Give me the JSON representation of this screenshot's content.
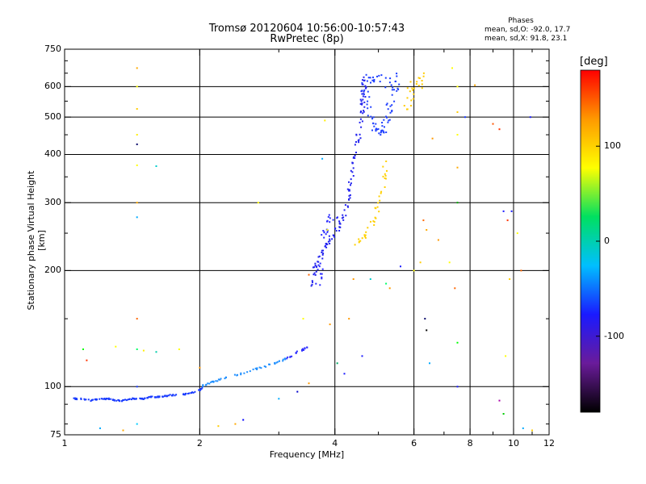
{
  "chart_data": {
    "type": "scatter",
    "title": "Tromsø 20120604 10:56:00-10:57:43",
    "subtitle": "RwPretec (8p)",
    "xlabel": "Frequency [MHz]",
    "ylabel": "Stationary phase Virtual Height [km]",
    "x_scale": "log",
    "y_scale": "log",
    "xlim": [
      1,
      12
    ],
    "ylim": [
      75,
      750
    ],
    "x_ticks": [
      1,
      2,
      4,
      6,
      8,
      10,
      12
    ],
    "y_ticks": [
      75,
      100,
      200,
      300,
      400,
      500,
      600,
      750
    ],
    "x_gridlines": [
      2,
      4,
      6,
      8,
      10
    ],
    "y_gridlines": [
      100,
      200,
      300,
      400,
      500,
      600
    ],
    "grid": true,
    "phase_stats": {
      "header": "Phases",
      "line_o": "mean, sd,O:  -92.0, 17.7",
      "line_x": "mean, sd,X:  91.8, 23.1"
    },
    "colorbar": {
      "label": "[deg]",
      "ticks": [
        -100,
        0,
        100
      ],
      "tick_labels": [
        "-100",
        "0",
        "100"
      ],
      "range": [
        -180,
        180
      ],
      "colors": [
        "#000000",
        "#6a1b9a",
        "#1a1aff",
        "#00bfff",
        "#00e060",
        "#ffff00",
        "#ff9900",
        "#ff0000"
      ]
    },
    "series": [
      {
        "traces": [
          {
            "color": "#1a3cff",
            "points": [
              [
                1.05,
                93
              ],
              [
                1.1,
                93
              ],
              [
                1.15,
                92
              ],
              [
                1.2,
                93
              ],
              [
                1.25,
                93
              ],
              [
                1.3,
                92
              ],
              [
                1.35,
                92
              ],
              [
                1.4,
                93
              ],
              [
                1.45,
                93
              ],
              [
                1.5,
                93
              ],
              [
                1.55,
                94
              ],
              [
                1.6,
                94
              ],
              [
                1.65,
                94
              ],
              [
                1.7,
                95
              ],
              [
                1.8,
                95
              ],
              [
                1.9,
                96
              ],
              [
                2.0,
                98
              ],
              [
                2.05,
                100
              ]
            ],
            "jitter": 1.5,
            "per_segment": 8
          },
          {
            "color": "#1f8fff",
            "points": [
              [
                2.0,
                100
              ],
              [
                2.1,
                102
              ],
              [
                2.2,
                104
              ],
              [
                2.4,
                107
              ],
              [
                2.6,
                110
              ],
              [
                2.8,
                113
              ],
              [
                3.0,
                116
              ],
              [
                3.1,
                118
              ]
            ],
            "jitter": 2,
            "per_segment": 7
          },
          {
            "color": "#3030ff",
            "points": [
              [
                3.1,
                118
              ],
              [
                3.2,
                120
              ],
              [
                3.3,
                123
              ],
              [
                3.4,
                125
              ],
              [
                3.5,
                127
              ]
            ],
            "jitter": 2,
            "per_segment": 5
          },
          {
            "color": "#2222ee",
            "points": [
              [
                3.55,
                185
              ],
              [
                3.6,
                200
              ],
              [
                3.7,
                215
              ],
              [
                3.8,
                230
              ],
              [
                3.9,
                240
              ],
              [
                4.0,
                250
              ],
              [
                4.1,
                262
              ],
              [
                4.2,
                280
              ],
              [
                4.3,
                310
              ],
              [
                4.35,
                340
              ],
              [
                4.4,
                380
              ],
              [
                4.5,
                430
              ],
              [
                4.55,
                480
              ],
              [
                4.6,
                530
              ],
              [
                4.62,
                560
              ],
              [
                4.65,
                600
              ],
              [
                4.67,
                640
              ]
            ],
            "jitter": 6,
            "per_segment": 8
          },
          {
            "color": "#2a2aff",
            "points": [
              [
                3.65,
                175
              ],
              [
                3.7,
                200
              ],
              [
                3.75,
                230
              ],
              [
                3.8,
                255
              ],
              [
                3.9,
                270
              ],
              [
                4.0,
                280
              ]
            ],
            "jitter": 8,
            "per_segment": 6
          },
          {
            "color": "#2040ff",
            "points": [
              [
                4.65,
                630
              ],
              [
                4.7,
                560
              ],
              [
                4.8,
                500
              ],
              [
                4.9,
                470
              ],
              [
                5.0,
                455
              ],
              [
                5.1,
                465
              ],
              [
                5.2,
                490
              ],
              [
                5.3,
                530
              ],
              [
                5.4,
                580
              ],
              [
                5.5,
                630
              ]
            ],
            "jitter": 10,
            "per_segment": 7
          },
          {
            "color": "#1a3cff",
            "points": [
              [
                4.7,
                640
              ],
              [
                4.9,
                620
              ],
              [
                5.1,
                640
              ],
              [
                5.3,
                610
              ],
              [
                5.5,
                640
              ]
            ],
            "jitter": 12,
            "per_segment": 5
          },
          {
            "color": "#ffd000",
            "points": [
              [
                4.4,
                225
              ],
              [
                4.6,
                240
              ],
              [
                4.8,
                258
              ],
              [
                4.95,
                280
              ],
              [
                5.05,
                310
              ],
              [
                5.15,
                350
              ],
              [
                5.2,
                390
              ]
            ],
            "jitter": 6,
            "per_segment": 6
          },
          {
            "color": "#ffcc00",
            "points": [
              [
                5.7,
                530
              ],
              [
                5.85,
                560
              ],
              [
                6.0,
                590
              ],
              [
                6.1,
                620
              ],
              [
                6.2,
                640
              ]
            ],
            "jitter": 15,
            "per_segment": 6
          }
        ],
        "scatter": [
          [
            1.45,
            670,
            "#ffaa00"
          ],
          [
            1.45,
            600,
            "#ffff00"
          ],
          [
            1.45,
            525,
            "#ffcc00"
          ],
          [
            1.45,
            450,
            "#ffee00"
          ],
          [
            1.45,
            425,
            "#000066"
          ],
          [
            1.45,
            375,
            "#ffff00"
          ],
          [
            1.45,
            300,
            "#ffaa00"
          ],
          [
            1.45,
            275,
            "#00aaff"
          ],
          [
            1.45,
            150,
            "#ff6600"
          ],
          [
            1.45,
            125,
            "#00ff66"
          ],
          [
            1.45,
            100,
            "#1a3cff"
          ],
          [
            1.45,
            80,
            "#00ccff"
          ],
          [
            1.6,
            373,
            "#00cccc"
          ],
          [
            1.1,
            125,
            "#00ff00"
          ],
          [
            1.12,
            117,
            "#ff3300"
          ],
          [
            1.3,
            127,
            "#ffff00"
          ],
          [
            1.5,
            124,
            "#ffee00"
          ],
          [
            1.6,
            123,
            "#00ccaa"
          ],
          [
            1.8,
            125,
            "#ffff00"
          ],
          [
            1.35,
            77,
            "#ffaa00"
          ],
          [
            1.2,
            78,
            "#00aaff"
          ],
          [
            2.2,
            79,
            "#ffcc00"
          ],
          [
            2.4,
            80,
            "#ffaa00"
          ],
          [
            2.5,
            82,
            "#0000ff"
          ],
          [
            2.0,
            112,
            "#ff9900"
          ],
          [
            2.7,
            300,
            "#ffff00"
          ],
          [
            3.0,
            93,
            "#00aaff"
          ],
          [
            3.3,
            97,
            "#0000cc"
          ],
          [
            3.5,
            102,
            "#ff9900"
          ],
          [
            3.4,
            150,
            "#ffff00"
          ],
          [
            3.5,
            195,
            "#ff6600"
          ],
          [
            3.75,
            390,
            "#00aaff"
          ],
          [
            3.8,
            490,
            "#ffee00"
          ],
          [
            3.85,
            255,
            "#ffff00"
          ],
          [
            3.9,
            145,
            "#ff9900"
          ],
          [
            4.05,
            115,
            "#00aa66"
          ],
          [
            4.2,
            108,
            "#1a1aff"
          ],
          [
            4.3,
            150,
            "#ff9900"
          ],
          [
            4.4,
            190,
            "#ff9900"
          ],
          [
            4.6,
            120,
            "#1a1aff"
          ],
          [
            4.8,
            190,
            "#00cccc"
          ],
          [
            5.3,
            180,
            "#ff9900"
          ],
          [
            5.6,
            205,
            "#1a1aff"
          ],
          [
            5.2,
            185,
            "#00ff66"
          ],
          [
            6.0,
            200,
            "#ffff00"
          ],
          [
            6.3,
            270,
            "#ff6600"
          ],
          [
            6.4,
            255,
            "#ffaa00"
          ],
          [
            6.35,
            150,
            "#000066"
          ],
          [
            6.4,
            140,
            "#000000"
          ],
          [
            6.5,
            115,
            "#00aaff"
          ],
          [
            6.2,
            210,
            "#ffcc00"
          ],
          [
            6.8,
            240,
            "#ff9900"
          ],
          [
            6.6,
            440,
            "#ff9900"
          ],
          [
            7.2,
            210,
            "#ffff00"
          ],
          [
            7.4,
            180,
            "#ff6600"
          ],
          [
            7.5,
            600,
            "#ffff00"
          ],
          [
            7.5,
            515,
            "#ffcc00"
          ],
          [
            7.5,
            450,
            "#ffff00"
          ],
          [
            7.5,
            370,
            "#ffaa00"
          ],
          [
            7.5,
            300,
            "#00aa00"
          ],
          [
            7.5,
            100,
            "#1a1aff"
          ],
          [
            7.3,
            670,
            "#ffff00"
          ],
          [
            7.5,
            130,
            "#00ff00"
          ],
          [
            7.8,
            500,
            "#1a3cff"
          ],
          [
            8.2,
            605,
            "#ffaa00"
          ],
          [
            9.0,
            480,
            "#ff5500"
          ],
          [
            9.3,
            465,
            "#ff3300"
          ],
          [
            9.5,
            285,
            "#1a1aff"
          ],
          [
            9.7,
            270,
            "#ff3300"
          ],
          [
            9.9,
            285,
            "#1a1aff"
          ],
          [
            9.3,
            92,
            "#aa00aa"
          ],
          [
            9.5,
            85,
            "#00cc00"
          ],
          [
            9.6,
            120,
            "#ffff00"
          ],
          [
            9.8,
            190,
            "#ffcc00"
          ],
          [
            10.2,
            250,
            "#ffff00"
          ],
          [
            10.4,
            200,
            "#ff6600"
          ],
          [
            10.9,
            500,
            "#1a1aff"
          ],
          [
            10.5,
            78,
            "#00aaff"
          ],
          [
            11.0,
            77,
            "#ffcc00"
          ]
        ]
      }
    ]
  }
}
